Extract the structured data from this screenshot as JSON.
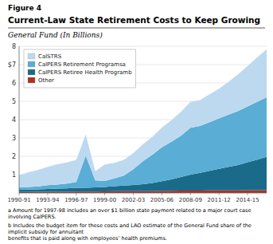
{
  "chart_data": {
    "type": "area",
    "stacked": true,
    "title": "Current-Law State Retirement Costs to Keep Growing",
    "subtitle": "General Fund (In Billions)",
    "annotations": [
      "Figure 4",
      "a Amount for 1997-98 includes an over $1 billion state payment related to a major court case involving CalPERS.",
      "b Includes the budget item for these costs and LAO estimate of the General Fund share of the implicit subsidy for annuitant\n  benefits that is paid along with employees’ health premiums."
    ],
    "categories": [
      "1990-91",
      null,
      null,
      "1993-94",
      null,
      null,
      "1996-97",
      null,
      null,
      "1999-00",
      null,
      null,
      "2002-03",
      null,
      null,
      "2005-06",
      null,
      null,
      "2008-09",
      null,
      null,
      "2011-12",
      null,
      null,
      "2014-15",
      null,
      null
    ],
    "series": [
      {
        "name": "CalSTRS",
        "color": "#bdd9f0",
        "values": [
          0.65,
          0.8,
          0.9,
          1.0,
          1.1,
          1.15,
          1.2,
          1.15,
          0.5,
          0.9,
          0.85,
          0.85,
          0.88,
          0.92,
          0.98,
          1.08,
          1.18,
          1.3,
          1.42,
          1.42,
          1.52,
          1.62,
          1.8,
          2.0,
          2.2,
          2.42,
          2.62
        ]
      },
      {
        "name": "CalPERS Retirement Programsa",
        "color": "#5aadd4",
        "values": [
          0.15,
          0.15,
          0.16,
          0.2,
          0.22,
          0.26,
          0.32,
          1.75,
          0.38,
          0.32,
          0.42,
          0.55,
          0.85,
          1.25,
          1.55,
          1.85,
          2.05,
          2.25,
          2.55,
          2.55,
          2.65,
          2.75,
          2.85,
          2.95,
          3.05,
          3.15,
          3.25
        ]
      },
      {
        "name": "CalPERS Retiree Health Programb",
        "color": "#1a6b8a",
        "values": [
          0.12,
          0.13,
          0.14,
          0.16,
          0.17,
          0.18,
          0.2,
          0.2,
          0.22,
          0.24,
          0.27,
          0.3,
          0.34,
          0.38,
          0.44,
          0.52,
          0.62,
          0.74,
          0.87,
          0.97,
          1.07,
          1.17,
          1.28,
          1.38,
          1.52,
          1.67,
          1.82
        ]
      },
      {
        "name": "Other",
        "color": "#b03020",
        "values": [
          0.05,
          0.05,
          0.06,
          0.06,
          0.07,
          0.07,
          0.08,
          0.08,
          0.08,
          0.09,
          0.1,
          0.1,
          0.1,
          0.1,
          0.1,
          0.12,
          0.12,
          0.13,
          0.13,
          0.13,
          0.14,
          0.14,
          0.14,
          0.14,
          0.15,
          0.15,
          0.15
        ]
      }
    ],
    "ylim": [
      0,
      8
    ],
    "yticks": [
      1,
      2,
      3,
      4,
      5,
      6,
      {
        "value": 7,
        "label": "$7"
      },
      8
    ],
    "grid": true,
    "legend": "upper left"
  }
}
